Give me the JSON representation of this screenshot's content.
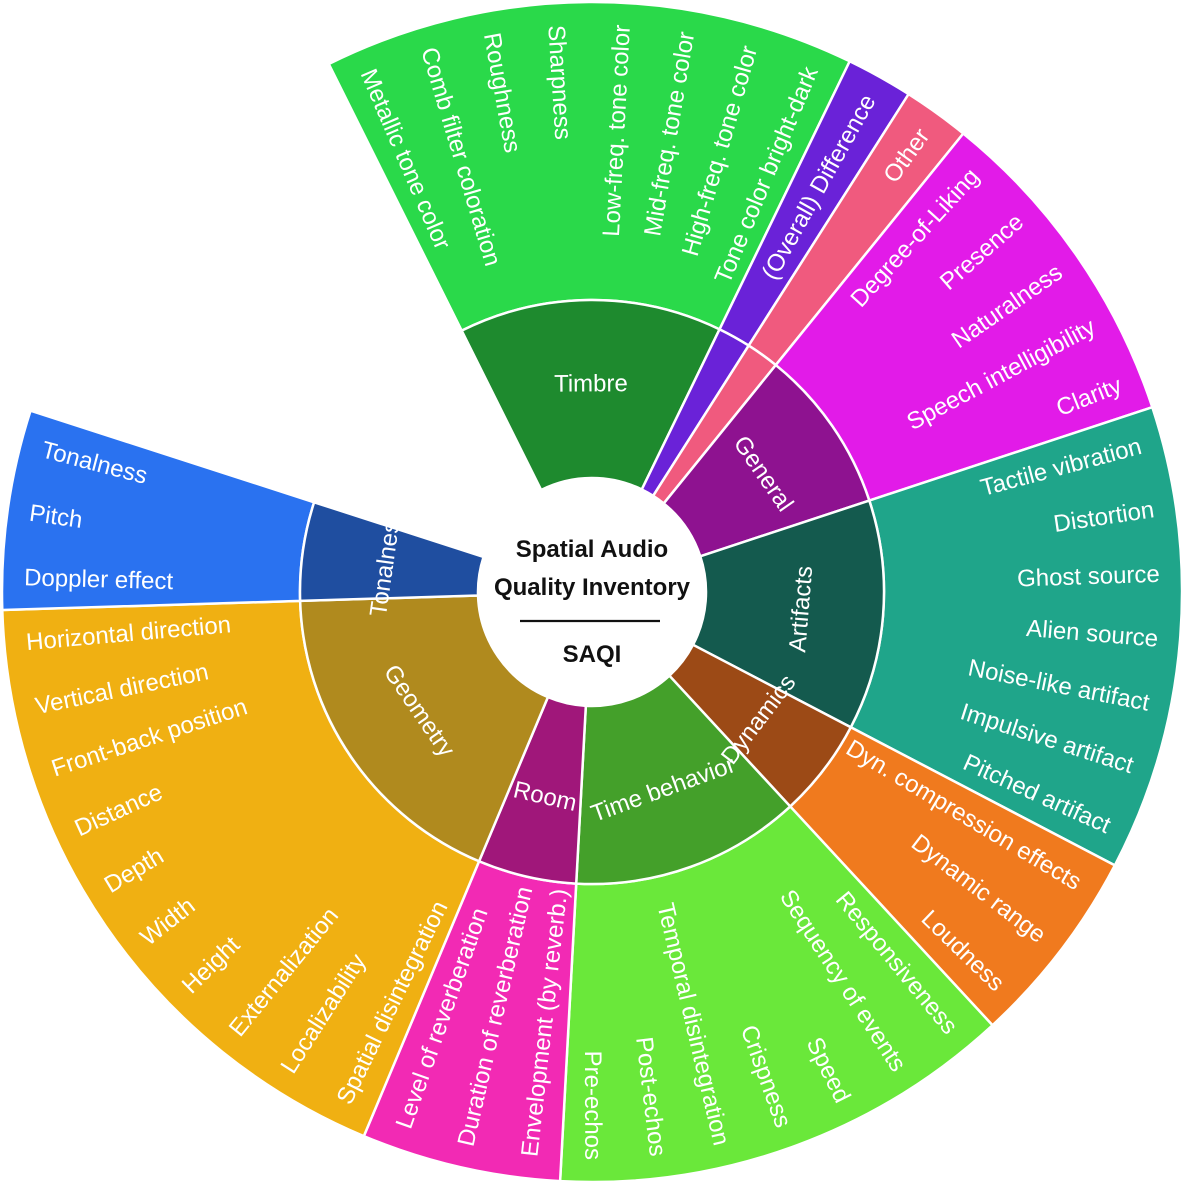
{
  "center": {
    "line1": "Spatial Audio",
    "line2": "Quality Inventory",
    "abbr": "SAQI"
  },
  "categories": [
    {
      "name": "Timbre",
      "color": "#2ad94a",
      "inner_color": "#1e8a2e",
      "attributes": [
        "Metallic tone color",
        "Comb filter coloration",
        "Roughness",
        "Sharpness",
        "Low-freq. tone color",
        "Mid-freq. tone color",
        "High-freq. tone color",
        "Tone color bright-dark"
      ]
    },
    {
      "name": "",
      "color": "#6a22d8",
      "inner_color": "#6a22d8",
      "attributes": [
        "(Overall) Difference"
      ]
    },
    {
      "name": "",
      "color": "#f05a7e",
      "inner_color": "#f05a7e",
      "attributes": [
        "Other"
      ]
    },
    {
      "name": "General",
      "color": "#e21be8",
      "inner_color": "#8e1290",
      "attributes": [
        "Degree-of-Liking",
        "Presence",
        "Naturalness",
        "Speech intelligibility",
        "Clarity"
      ]
    },
    {
      "name": "Artifacts",
      "color": "#1fa58a",
      "inner_color": "#145a4e",
      "attributes": [
        "Tactile vibration",
        "Distortion",
        "Ghost source",
        "Alien source",
        "Noise-like artifact",
        "Impulsive artifact",
        "Pitched artifact"
      ]
    },
    {
      "name": "Dynamics",
      "color": "#f07a1e",
      "inner_color": "#9c4a16",
      "attributes": [
        "Dyn. compression effects",
        "Dynamic range",
        "Loudness"
      ]
    },
    {
      "name": "Time behavior",
      "color": "#6ae83a",
      "inner_color": "#44a02a",
      "attributes": [
        "Responsiveness",
        "Sequency of events",
        "Speed",
        "Crispness",
        "Temporal disintegration",
        "Post-echos",
        "Pre-echos"
      ]
    },
    {
      "name": "Room",
      "color": "#f22ab4",
      "inner_color": "#a0177a",
      "attributes": [
        "Envelopment (by reverb.)",
        "Duration of reverberation",
        "Level of reverberation"
      ]
    },
    {
      "name": "Geometry",
      "color": "#f0b012",
      "inner_color": "#b08a1e",
      "attributes": [
        "Spatial disintegration",
        "Localizability",
        "Externalization",
        "Height",
        "Width",
        "Depth",
        "Distance",
        "Front-back position",
        "Vertical direction",
        "Horizontal direction"
      ]
    },
    {
      "name": "Tonalness",
      "color": "#2a72f0",
      "inner_color": "#1f4ea0",
      "attributes": [
        "Doppler effect",
        "Pitch",
        "Tonalness"
      ]
    }
  ]
}
